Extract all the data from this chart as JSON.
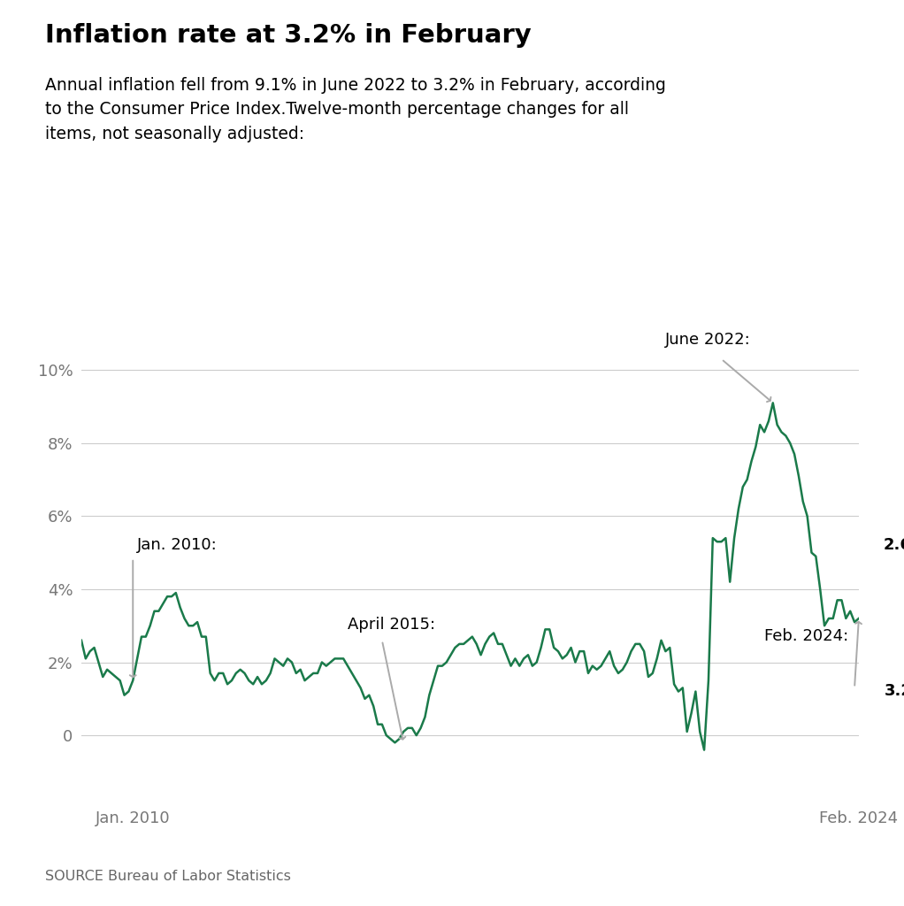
{
  "title": "Inflation rate at 3.2% in February",
  "subtitle": "Annual inflation fell from 9.1% in June 2022 to 3.2% in February, according\nto the Consumer Price Index.Twelve-month percentage changes for all\nitems, not seasonally adjusted:",
  "source": "SOURCE Bureau of Labor Statistics",
  "line_color": "#1a7a4a",
  "background_color": "#ffffff",
  "arrow_color": "#aaaaaa",
  "ytick_labels": [
    "0",
    "2%",
    "4%",
    "6%",
    "8%",
    "10%"
  ],
  "ytick_values": [
    0,
    2,
    4,
    6,
    8,
    10
  ],
  "data": [
    2.6,
    2.1,
    2.3,
    2.4,
    2.0,
    1.6,
    1.8,
    1.7,
    1.6,
    1.5,
    1.1,
    1.2,
    1.5,
    2.1,
    2.7,
    2.7,
    3.0,
    3.4,
    3.4,
    3.6,
    3.8,
    3.8,
    3.9,
    3.5,
    3.2,
    3.0,
    3.0,
    3.1,
    2.7,
    2.7,
    1.7,
    1.5,
    1.7,
    1.7,
    1.4,
    1.5,
    1.7,
    1.8,
    1.7,
    1.5,
    1.4,
    1.6,
    1.4,
    1.5,
    1.7,
    2.1,
    2.0,
    1.9,
    2.1,
    2.0,
    1.7,
    1.8,
    1.5,
    1.6,
    1.7,
    1.7,
    2.0,
    1.9,
    2.0,
    2.1,
    2.1,
    2.1,
    1.9,
    1.7,
    1.5,
    1.3,
    1.0,
    1.1,
    0.8,
    0.3,
    0.3,
    0.0,
    -0.1,
    -0.2,
    -0.1,
    0.1,
    0.2,
    0.2,
    0.0,
    0.2,
    0.5,
    1.1,
    1.5,
    1.9,
    1.9,
    2.0,
    2.2,
    2.4,
    2.5,
    2.5,
    2.6,
    2.7,
    2.5,
    2.2,
    2.5,
    2.7,
    2.8,
    2.5,
    2.5,
    2.2,
    1.9,
    2.1,
    1.9,
    2.1,
    2.2,
    1.9,
    2.0,
    2.4,
    2.9,
    2.9,
    2.4,
    2.3,
    2.1,
    2.2,
    2.4,
    2.0,
    2.3,
    2.3,
    1.7,
    1.9,
    1.8,
    1.9,
    2.1,
    2.3,
    1.9,
    1.7,
    1.8,
    2.0,
    2.3,
    2.5,
    2.5,
    2.3,
    1.6,
    1.7,
    2.1,
    2.6,
    2.3,
    2.4,
    1.4,
    1.2,
    1.3,
    0.1,
    0.6,
    1.2,
    0.1,
    -0.4,
    1.5,
    5.4,
    5.3,
    5.3,
    5.4,
    4.2,
    5.4,
    6.2,
    6.8,
    7.0,
    7.5,
    7.9,
    8.5,
    8.3,
    8.6,
    9.1,
    8.5,
    8.3,
    8.2,
    8.0,
    7.7,
    7.1,
    6.4,
    6.0,
    5.0,
    4.9,
    4.0,
    3.0,
    3.2,
    3.2,
    3.7,
    3.7,
    3.2,
    3.4,
    3.1,
    3.2
  ]
}
